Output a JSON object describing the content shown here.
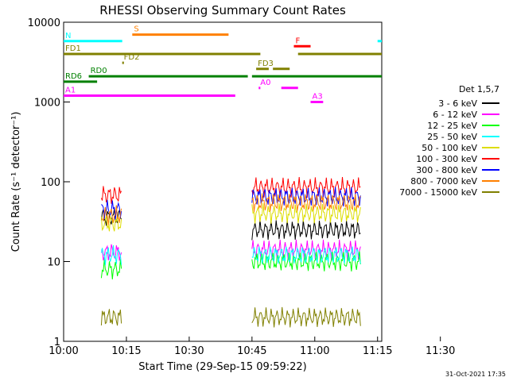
{
  "chart_data": {
    "type": "line",
    "title": "RHESSI Observing Summary Count Rates",
    "xlabel": "Start Time (29-Sep-15 09:59:22)",
    "ylabel": "Count Rate (s⁻¹ detector⁻¹)",
    "y_scale": "log",
    "ylim": [
      1,
      10000
    ],
    "xlim_minutes": [
      0,
      38
    ],
    "x_ticks": [
      {
        "m": 0,
        "label": "10:00"
      },
      {
        "m": 7.5,
        "label": "10:15"
      },
      {
        "m": 15,
        "label": "10:30"
      },
      {
        "m": 22.5,
        "label": "10:45"
      },
      {
        "m": 30,
        "label": "11:00"
      },
      {
        "m": 37.5,
        "label": "11:15"
      },
      {
        "m": 45,
        "label": "11:30"
      }
    ],
    "y_ticks": [
      {
        "v": 1,
        "label": "1"
      },
      {
        "v": 10,
        "label": "10"
      },
      {
        "v": 100,
        "label": "100"
      },
      {
        "v": 1000,
        "label": "1000"
      },
      {
        "v": 10000,
        "label": "10000"
      }
    ],
    "legend_title": "Det 1,5,7",
    "series": [
      {
        "name": "3 - 6 keV",
        "color": "#000000",
        "level_a": 36,
        "level_b": 25
      },
      {
        "name": "6 - 12 keV",
        "color": "#ff00ff",
        "level_a": 13,
        "level_b": 14
      },
      {
        "name": "12 - 25 keV",
        "color": "#00ff00",
        "level_a": 8,
        "level_b": 10
      },
      {
        "name": "25 - 50 keV",
        "color": "#00ffff",
        "level_a": 12,
        "level_b": 12
      },
      {
        "name": "50 - 100 keV",
        "color": "#dddd00",
        "level_a": 30,
        "level_b": 40
      },
      {
        "name": "100 - 300 keV",
        "color": "#ff0000",
        "level_a": 68,
        "level_b": 85
      },
      {
        "name": "300 - 800 keV",
        "color": "#0000ff",
        "level_a": 45,
        "level_b": 65
      },
      {
        "name": "800 - 7000 keV",
        "color": "#ff8000",
        "level_a": 38,
        "level_b": 55
      },
      {
        "name": "7000 - 15000 keV",
        "color": "#808000",
        "level_a": 2,
        "level_b": 2
      }
    ],
    "flag_bars": [
      {
        "label": "S",
        "color": "#ff8000",
        "y": 7000,
        "segments": [
          [
            8.2,
            19.7
          ]
        ]
      },
      {
        "label": "N",
        "color": "#00ffff",
        "y": 5800,
        "segments": [
          [
            0,
            7.0
          ],
          [
            37.5,
            38
          ]
        ]
      },
      {
        "label": "FD1",
        "color": "#808000",
        "y": 4000,
        "segments": [
          [
            0,
            23.5
          ],
          [
            28,
            38
          ]
        ]
      },
      {
        "label": "F",
        "color": "#ff0000",
        "y": 5000,
        "segments": [
          [
            27.5,
            29.5
          ]
        ]
      },
      {
        "label": "FD2",
        "color": "#808000",
        "y": 3100,
        "segments": [
          [
            7.0,
            7.2
          ]
        ]
      },
      {
        "label": "FD3",
        "color": "#808000",
        "y": 2600,
        "segments": [
          [
            23.0,
            24.5
          ],
          [
            25,
            27
          ]
        ]
      },
      {
        "label": "RD0",
        "color": "#008000",
        "y": 2100,
        "segments": [
          [
            3,
            22
          ],
          [
            22.5,
            38
          ]
        ]
      },
      {
        "label": "RD6",
        "color": "#008000",
        "y": 1800,
        "segments": [
          [
            0,
            4
          ]
        ]
      },
      {
        "label": "A0",
        "color": "#ff00ff",
        "y": 1500,
        "segments": [
          [
            23.3,
            23.5
          ],
          [
            26,
            28
          ]
        ]
      },
      {
        "label": "A1",
        "color": "#ff00ff",
        "y": 1200,
        "segments": [
          [
            0,
            20.5
          ]
        ]
      },
      {
        "label": "A3",
        "color": "#ff00ff",
        "y": 1000,
        "segments": [
          [
            29.5,
            31
          ]
        ]
      }
    ],
    "timestamp": "31-Oct-2021 17:35"
  }
}
